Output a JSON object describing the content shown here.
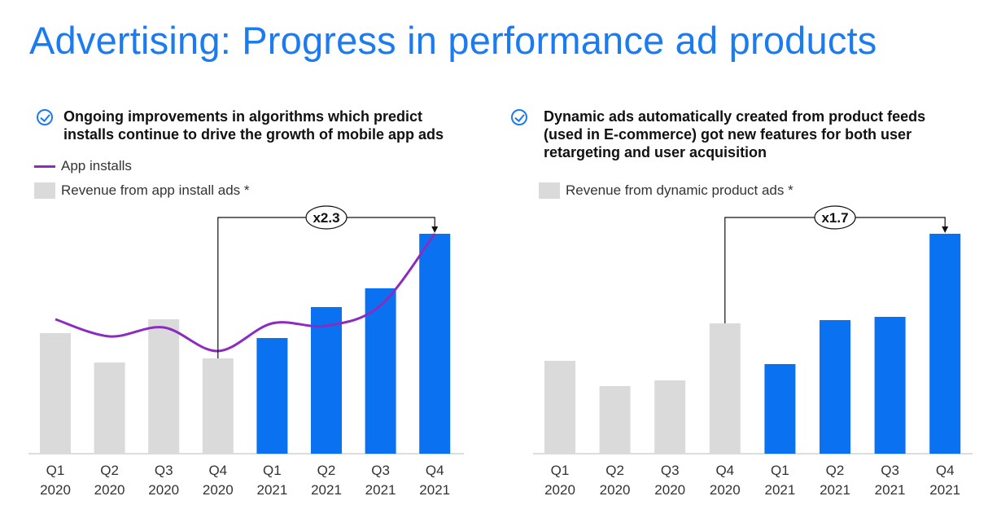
{
  "title": "Advertising: Progress in performance ad products",
  "colors": {
    "title": "#1a7cf0",
    "bar_2020": "#dadada",
    "bar_2021": "#0a72f0",
    "line": "#8b2bc0"
  },
  "chart_data": [
    {
      "type": "bar",
      "bullet": "Ongoing improvements in algorithms which predict installs continue to drive the growth of mobile app ads",
      "bullet_lines": [
        "Ongoing improvements in algorithms which predict",
        "installs continue to drive the growth of mobile app ads"
      ],
      "legend": {
        "line": "App installs",
        "bars": "Revenue from app install ads *"
      },
      "categories": [
        "Q1\n2020",
        "Q2\n2020",
        "Q3\n2020",
        "Q4\n2020",
        "Q1\n2021",
        "Q2\n2021",
        "Q3\n2021",
        "Q4\n2021"
      ],
      "cat_quarters": [
        "Q1",
        "Q2",
        "Q3",
        "Q4",
        "Q1",
        "Q2",
        "Q3",
        "Q4"
      ],
      "cat_years": [
        "2020",
        "2020",
        "2020",
        "2020",
        "2021",
        "2021",
        "2021",
        "2021"
      ],
      "series": [
        {
          "name": "Revenue from app install ads *",
          "values": [
            148,
            112,
            165,
            117,
            142,
            180,
            203,
            270
          ]
        },
        {
          "name": "App installs",
          "type": "line",
          "values": [
            165,
            144,
            155,
            126,
            160,
            157,
            182,
            270
          ]
        }
      ],
      "annotation": {
        "label": "x2.3",
        "from": 3,
        "to": 7
      },
      "units": "relative (no axis shown)",
      "ylim": [
        0,
        300
      ]
    },
    {
      "type": "bar",
      "bullet": "Dynamic ads automatically created from product feeds (used in E-commerce) got new features for both user retargeting and user acquisition",
      "bullet_lines": [
        "Dynamic ads automatically created from product feeds",
        "(used in E-commerce) got new features for both user",
        "retargeting and user acquisition"
      ],
      "legend": {
        "bars": "Revenue from dynamic product ads *"
      },
      "categories": [
        "Q1\n2020",
        "Q2\n2020",
        "Q3\n2020",
        "Q4\n2020",
        "Q1\n2021",
        "Q2\n2021",
        "Q3\n2021",
        "Q4\n2021"
      ],
      "cat_quarters": [
        "Q1",
        "Q2",
        "Q3",
        "Q4",
        "Q1",
        "Q2",
        "Q3",
        "Q4"
      ],
      "cat_years": [
        "2020",
        "2020",
        "2020",
        "2020",
        "2021",
        "2021",
        "2021",
        "2021"
      ],
      "series": [
        {
          "name": "Revenue from dynamic product ads *",
          "values": [
            114,
            83,
            90,
            160,
            110,
            164,
            168,
            270
          ]
        }
      ],
      "annotation": {
        "label": "x1.7",
        "from": 3,
        "to": 7
      },
      "units": "relative (no axis shown)",
      "ylim": [
        0,
        300
      ]
    }
  ]
}
